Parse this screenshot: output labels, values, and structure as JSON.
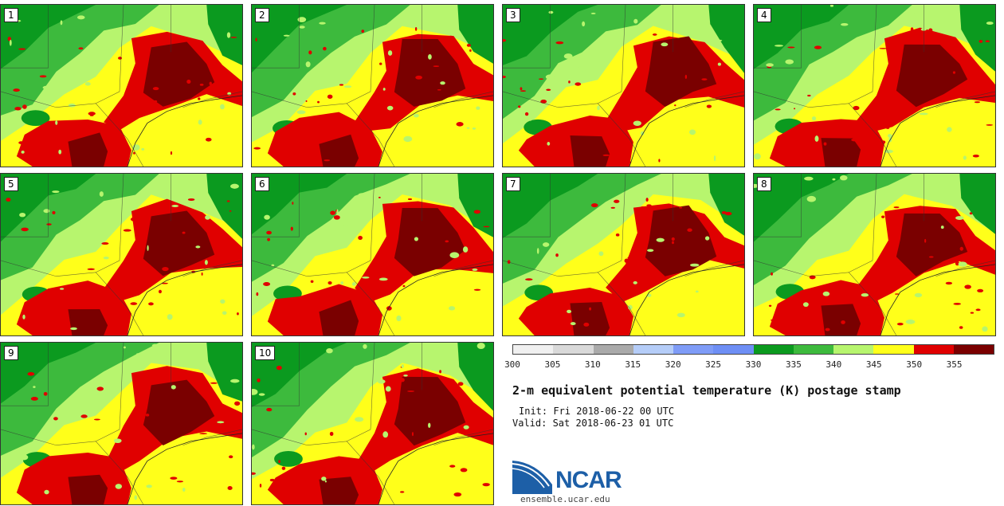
{
  "panels": [
    {
      "label": "1"
    },
    {
      "label": "2"
    },
    {
      "label": "3"
    },
    {
      "label": "4"
    },
    {
      "label": "5"
    },
    {
      "label": "6"
    },
    {
      "label": "7"
    },
    {
      "label": "8"
    },
    {
      "label": "9"
    },
    {
      "label": "10"
    }
  ],
  "colorbar": {
    "colors": [
      "#f0f0f0",
      "#d9d9d9",
      "#aaaaaa",
      "#b5cdf8",
      "#7f9cf7",
      "#6e8ff5",
      "#0b9a1f",
      "#3dba3d",
      "#b7f56e",
      "#ffff1a",
      "#e00000",
      "#7a0000"
    ],
    "ticks": [
      "300",
      "305",
      "310",
      "315",
      "320",
      "325",
      "330",
      "335",
      "340",
      "345",
      "350",
      "355"
    ]
  },
  "title": "2-m equivalent potential temperature (K) postage stamp",
  "init": "Init: Fri 2018-06-22 00 UTC",
  "valid": "Valid: Sat 2018-06-23 01 UTC",
  "logo": {
    "text": "NCAR",
    "url_text": "ensemble.ucar.edu"
  }
}
